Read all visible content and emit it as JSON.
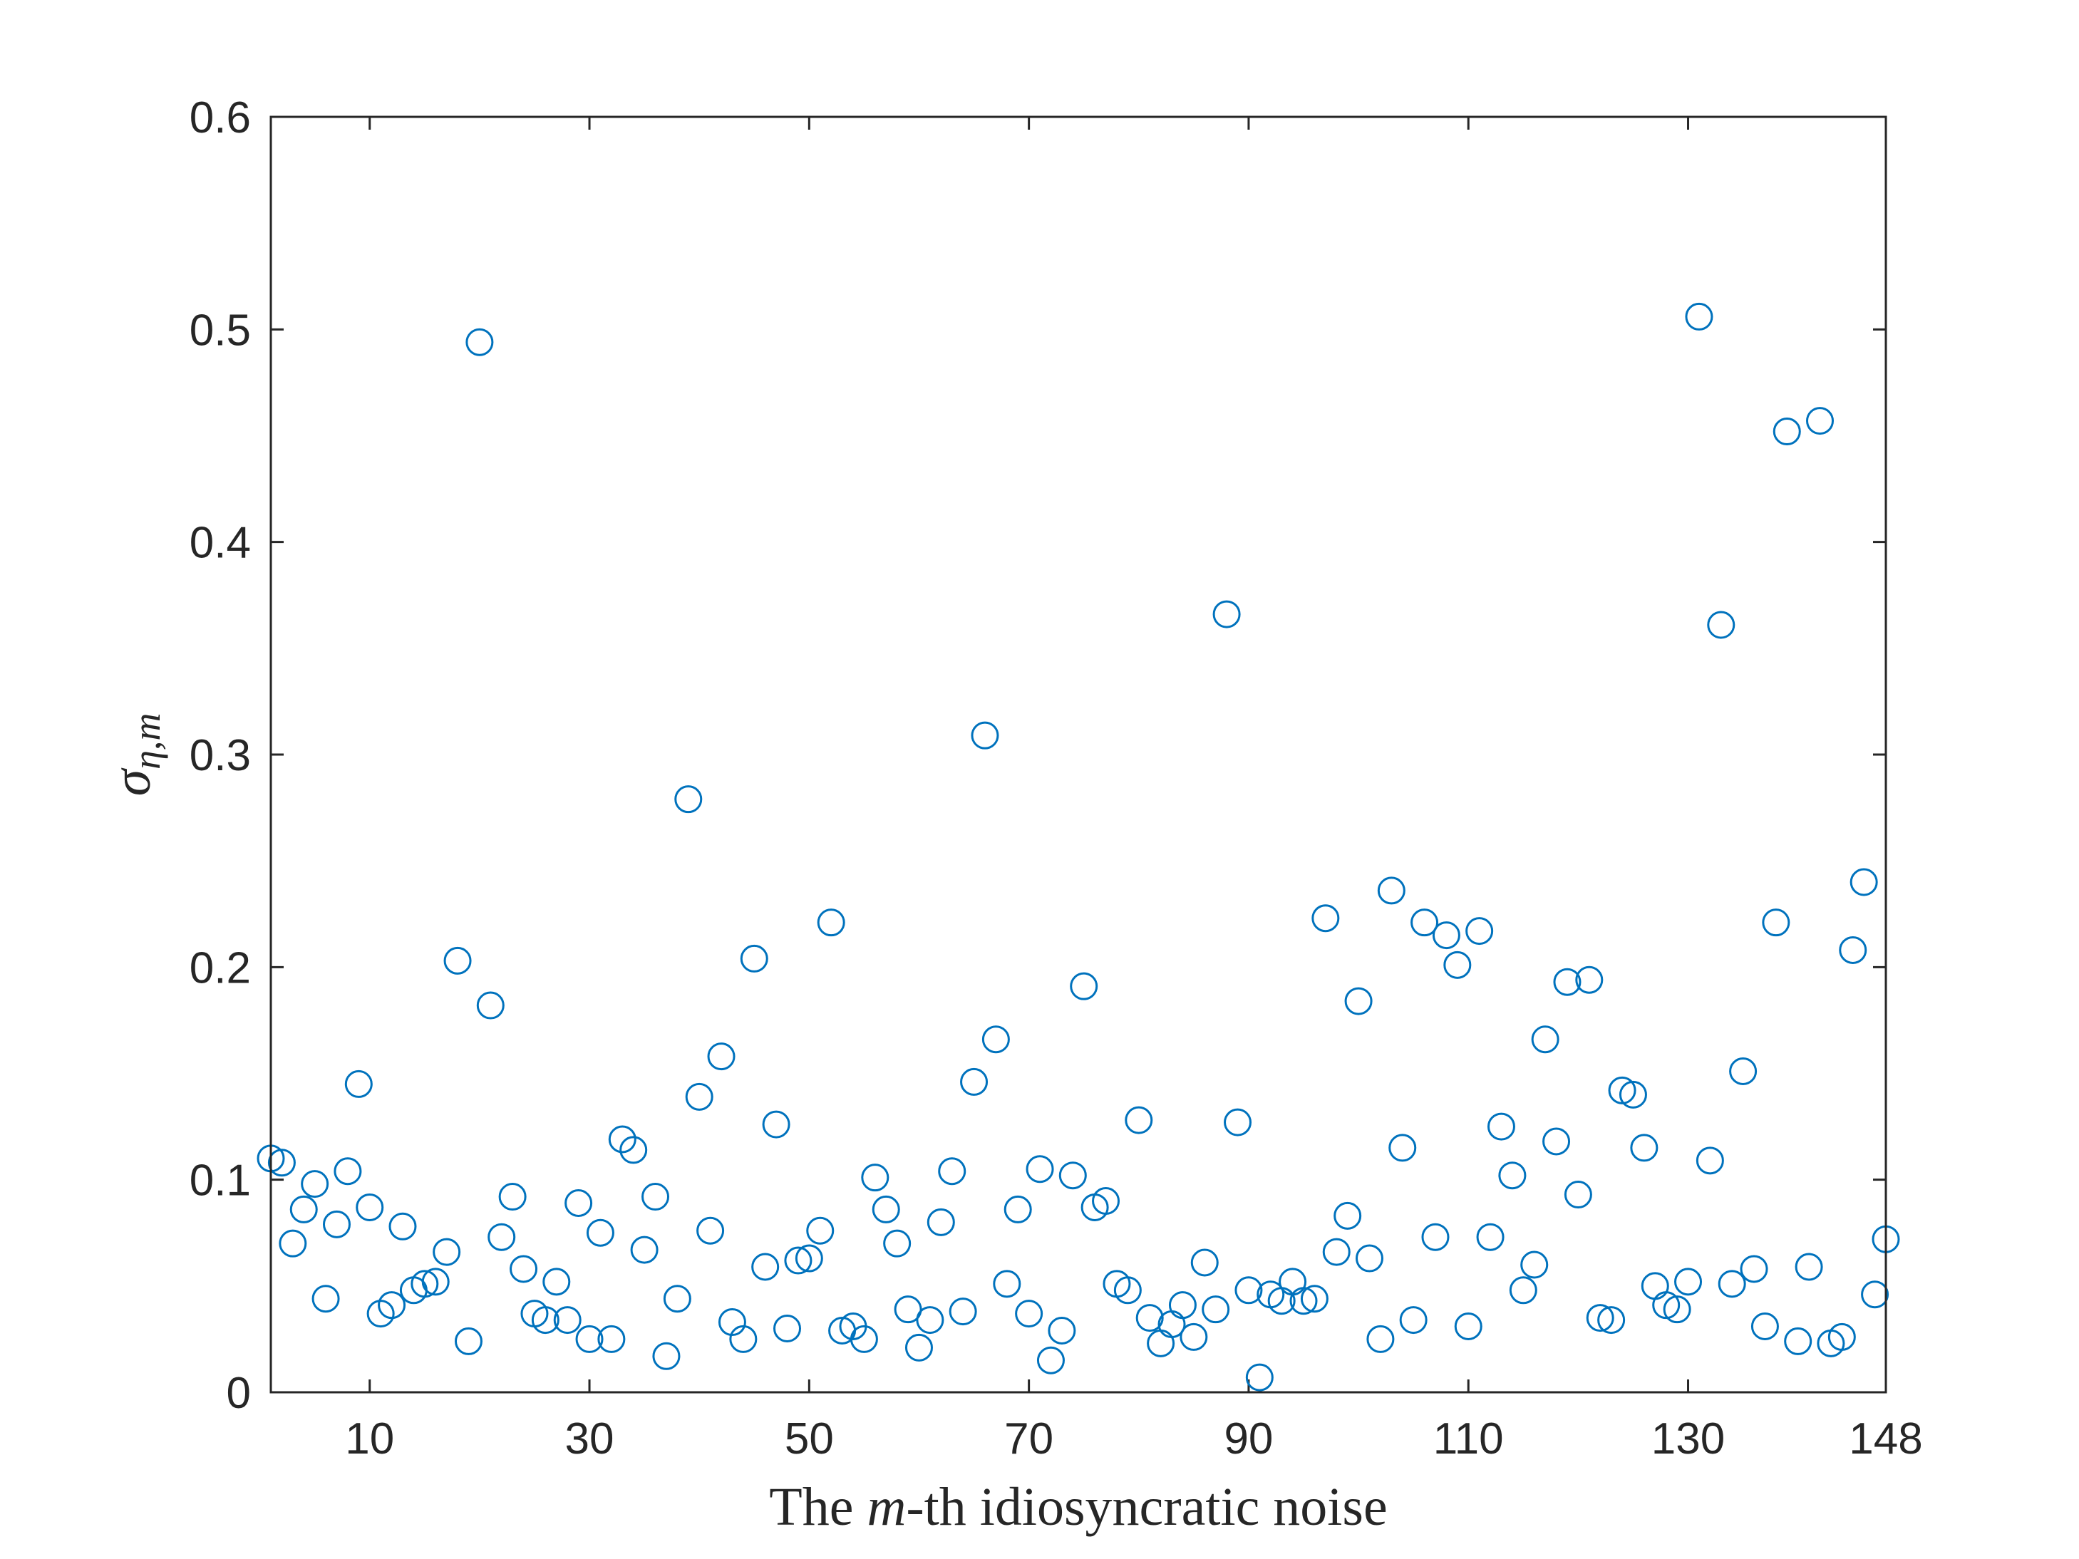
{
  "chart_data": {
    "type": "scatter",
    "title": "",
    "xlabel_parts": [
      "The ",
      "m",
      "-th idiosyncratic noise"
    ],
    "ylabel_parts": [
      "σ",
      "η,m"
    ],
    "xlim": [
      1,
      148
    ],
    "ylim": [
      0,
      0.6
    ],
    "xticks": [
      10,
      30,
      50,
      70,
      90,
      110,
      130,
      148
    ],
    "yticks": [
      0,
      0.1,
      0.2,
      0.3,
      0.4,
      0.5,
      0.6
    ],
    "xtick_labels": [
      "10",
      "30",
      "50",
      "70",
      "90",
      "110",
      "130",
      "148"
    ],
    "ytick_labels": [
      "0",
      "0.1",
      "0.2",
      "0.3",
      "0.4",
      "0.5",
      "0.6"
    ],
    "grid": false,
    "marker": "open-circle",
    "marker_color": "#0072BD",
    "axis_color": "#262626",
    "x": [
      1,
      2,
      3,
      4,
      5,
      6,
      7,
      8,
      9,
      10,
      11,
      12,
      13,
      14,
      15,
      16,
      17,
      18,
      19,
      20,
      21,
      22,
      23,
      24,
      25,
      26,
      27,
      28,
      29,
      30,
      31,
      32,
      33,
      34,
      35,
      36,
      37,
      38,
      39,
      40,
      41,
      42,
      43,
      44,
      45,
      46,
      47,
      48,
      49,
      50,
      51,
      52,
      53,
      54,
      55,
      56,
      57,
      58,
      59,
      60,
      61,
      62,
      63,
      64,
      65,
      66,
      67,
      68,
      69,
      70,
      71,
      72,
      73,
      74,
      75,
      76,
      77,
      78,
      79,
      80,
      81,
      82,
      83,
      84,
      85,
      86,
      87,
      88,
      89,
      90,
      91,
      92,
      93,
      94,
      95,
      96,
      97,
      98,
      99,
      100,
      101,
      102,
      103,
      104,
      105,
      106,
      107,
      108,
      109,
      110,
      111,
      112,
      113,
      114,
      115,
      116,
      117,
      118,
      119,
      120,
      121,
      122,
      123,
      124,
      125,
      126,
      127,
      128,
      129,
      130,
      131,
      132,
      133,
      134,
      135,
      136,
      137,
      138,
      139,
      140,
      141,
      142,
      143,
      144,
      145,
      146,
      147,
      148
    ],
    "y": [
      0.11,
      0.108,
      0.07,
      0.086,
      0.098,
      0.044,
      0.079,
      0.104,
      0.145,
      0.087,
      0.037,
      0.041,
      0.078,
      0.048,
      0.051,
      0.052,
      0.066,
      0.203,
      0.024,
      0.494,
      0.182,
      0.073,
      0.092,
      0.058,
      0.037,
      0.034,
      0.052,
      0.034,
      0.089,
      0.025,
      0.075,
      0.025,
      0.119,
      0.114,
      0.067,
      0.092,
      0.017,
      0.044,
      0.279,
      0.139,
      0.076,
      0.158,
      0.033,
      0.025,
      0.204,
      0.059,
      0.126,
      0.03,
      0.062,
      0.063,
      0.076,
      0.221,
      0.029,
      0.031,
      0.025,
      0.101,
      0.086,
      0.07,
      0.039,
      0.021,
      0.034,
      0.08,
      0.104,
      0.038,
      0.146,
      0.309,
      0.166,
      0.051,
      0.086,
      0.037,
      0.105,
      0.015,
      0.029,
      0.102,
      0.191,
      0.087,
      0.09,
      0.051,
      0.048,
      0.128,
      0.035,
      0.023,
      0.032,
      0.041,
      0.026,
      0.061,
      0.039,
      0.366,
      0.127,
      0.048,
      0.007,
      0.046,
      0.043,
      0.052,
      0.043,
      0.044,
      0.223,
      0.066,
      0.083,
      0.184,
      0.063,
      0.025,
      0.236,
      0.115,
      0.034,
      0.221,
      0.073,
      0.215,
      0.201,
      0.031,
      0.217,
      0.073,
      0.125,
      0.102,
      0.048,
      0.06,
      0.166,
      0.118,
      0.193,
      0.093,
      0.194,
      0.035,
      0.034,
      0.142,
      0.14,
      0.115,
      0.05,
      0.041,
      0.039,
      0.052,
      0.506,
      0.109,
      0.361,
      0.051,
      0.151,
      0.058,
      0.031,
      0.221,
      0.452,
      0.024,
      0.059,
      0.457,
      0.023,
      0.026,
      0.208,
      0.24,
      0.046,
      0.072
    ]
  }
}
